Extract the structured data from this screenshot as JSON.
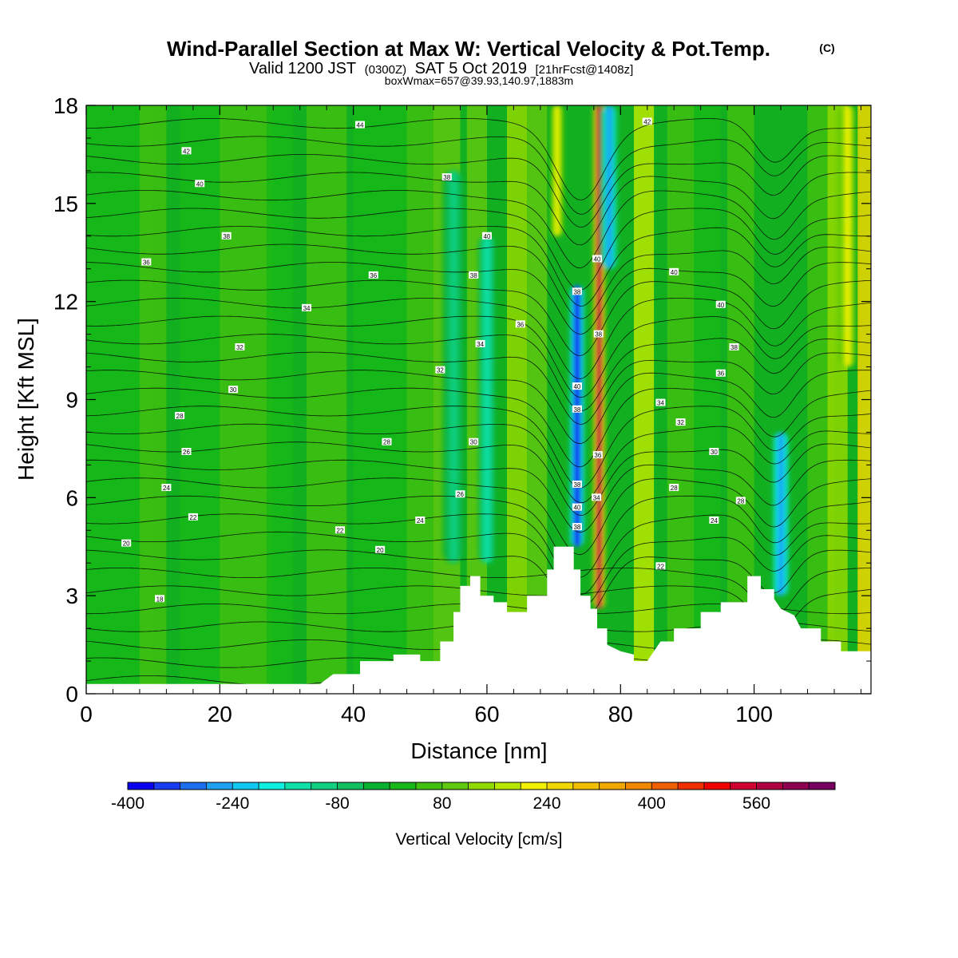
{
  "header": {
    "title": "Wind-Parallel Section at Max W: Vertical Velocity & Pot.Temp.",
    "title_suffix": "(C)",
    "subtitle_a": "Valid 1200 JST",
    "subtitle_b": "(0300Z)",
    "subtitle_c": "SAT 5 Oct 2019",
    "subtitle_d": "[21hrFcst@1408z]",
    "subtitle2": "boxWmax=657@39.93,140.97,1883m"
  },
  "chart_data": {
    "type": "heatmap",
    "title": "Wind-Parallel Section at Max W: Vertical Velocity & Pot.Temp.",
    "xlabel": "Distance [nm]",
    "ylabel": "Height [Kft MSL]",
    "xlim": [
      0,
      117.5
    ],
    "ylim": [
      0,
      18
    ],
    "x_ticks": [
      0,
      20,
      40,
      60,
      80,
      100
    ],
    "y_ticks": [
      0,
      3,
      6,
      9,
      12,
      15,
      18
    ],
    "grid": false,
    "colorbar": {
      "label": "Vertical Velocity [cm/s]",
      "placement": "bottom",
      "min": -400,
      "max": 680,
      "step": 40,
      "tick_labels": [
        -400,
        -240,
        -80,
        80,
        240,
        400,
        560
      ],
      "colors": [
        "#0b00f0",
        "#1a3cf0",
        "#1e6ef0",
        "#1ea0f0",
        "#10c8f0",
        "#10f0e0",
        "#10e0a8",
        "#10d080",
        "#10c060",
        "#08b030",
        "#18b818",
        "#40c010",
        "#60c810",
        "#90d800",
        "#b8e800",
        "#f0f000",
        "#f0d800",
        "#f0c000",
        "#f0a800",
        "#f08800",
        "#f06000",
        "#f03000",
        "#f00000",
        "#d00030",
        "#b00040",
        "#900050",
        "#780060"
      ]
    },
    "terrain": [
      [
        0,
        0.3
      ],
      [
        5,
        0.3
      ],
      [
        10,
        0.3
      ],
      [
        15,
        0.3
      ],
      [
        20,
        0.3
      ],
      [
        25,
        0.3
      ],
      [
        30,
        0.3
      ],
      [
        35,
        0.3
      ],
      [
        37,
        0.6
      ],
      [
        41,
        0.6
      ],
      [
        41,
        1.0
      ],
      [
        46,
        1.0
      ],
      [
        46,
        1.2
      ],
      [
        50,
        1.2
      ],
      [
        50,
        1.0
      ],
      [
        53,
        1.0
      ],
      [
        53,
        1.6
      ],
      [
        55,
        1.6
      ],
      [
        55,
        2.5
      ],
      [
        56,
        2.5
      ],
      [
        56,
        3.3
      ],
      [
        57.5,
        3.3
      ],
      [
        57.5,
        3.6
      ],
      [
        59,
        3.6
      ],
      [
        59,
        3.0
      ],
      [
        61,
        3.0
      ],
      [
        61,
        2.8
      ],
      [
        63,
        2.8
      ],
      [
        63,
        2.5
      ],
      [
        66,
        2.5
      ],
      [
        66,
        3.0
      ],
      [
        69,
        3.0
      ],
      [
        69,
        3.8
      ],
      [
        70,
        3.8
      ],
      [
        70,
        4.5
      ],
      [
        73,
        4.5
      ],
      [
        73,
        3.8
      ],
      [
        74,
        3.8
      ],
      [
        74,
        3.0
      ],
      [
        75.5,
        3.0
      ],
      [
        75.5,
        2.6
      ],
      [
        76.5,
        2.6
      ],
      [
        76.5,
        2.0
      ],
      [
        78,
        2.0
      ],
      [
        78,
        1.5
      ],
      [
        80,
        1.3
      ],
      [
        82,
        1.2
      ],
      [
        82,
        1.0
      ],
      [
        84,
        1.0
      ],
      [
        85,
        1.3
      ],
      [
        86,
        1.6
      ],
      [
        88,
        1.6
      ],
      [
        88,
        2.0
      ],
      [
        92,
        2.0
      ],
      [
        92,
        2.5
      ],
      [
        95,
        2.5
      ],
      [
        95,
        2.8
      ],
      [
        99,
        2.8
      ],
      [
        99,
        3.6
      ],
      [
        101,
        3.6
      ],
      [
        101,
        3.2
      ],
      [
        103,
        3.2
      ],
      [
        103,
        2.9
      ],
      [
        104,
        2.6
      ],
      [
        106,
        2.4
      ],
      [
        107,
        2.0
      ],
      [
        110,
        2.0
      ],
      [
        110,
        1.6
      ],
      [
        113,
        1.6
      ],
      [
        113,
        1.3
      ],
      [
        116,
        1.3
      ],
      [
        116,
        1.3
      ],
      [
        117.5,
        1.3
      ]
    ],
    "w_features": [
      {
        "x": 76.8,
        "y0": 2.6,
        "y1": 18,
        "width": 1.1,
        "peak": 600
      },
      {
        "x": 73.5,
        "y0": 4.5,
        "y1": 12.5,
        "width": 1.5,
        "peak": -400
      },
      {
        "x": 78.3,
        "y0": 13,
        "y1": 18,
        "width": 1.6,
        "peak": -260
      },
      {
        "x": 70.5,
        "y0": 14,
        "y1": 18,
        "width": 1.2,
        "peak": 200
      },
      {
        "x": 104,
        "y0": 3,
        "y1": 8,
        "width": 1.6,
        "peak": -280
      },
      {
        "x": 114,
        "y0": 10,
        "y1": 18,
        "width": 1.5,
        "peak": 200
      },
      {
        "x": 60,
        "y0": 4,
        "y1": 14,
        "width": 1.6,
        "peak": -140
      },
      {
        "x": 55,
        "y0": 4,
        "y1": 16,
        "width": 2,
        "peak": -100
      }
    ],
    "theta_contour_labels": [
      {
        "x": 41,
        "y": 17.4,
        "text": "44"
      },
      {
        "x": 15,
        "y": 16.6,
        "text": "42"
      },
      {
        "x": 17,
        "y": 15.6,
        "text": "40"
      },
      {
        "x": 54,
        "y": 15.8,
        "text": "38"
      },
      {
        "x": 21,
        "y": 14.0,
        "text": "38"
      },
      {
        "x": 60,
        "y": 14.0,
        "text": "40"
      },
      {
        "x": 9,
        "y": 13.2,
        "text": "36"
      },
      {
        "x": 43,
        "y": 12.8,
        "text": "36"
      },
      {
        "x": 58,
        "y": 12.8,
        "text": "38"
      },
      {
        "x": 33,
        "y": 11.8,
        "text": "34"
      },
      {
        "x": 65,
        "y": 11.3,
        "text": "36"
      },
      {
        "x": 23,
        "y": 10.6,
        "text": "32"
      },
      {
        "x": 59,
        "y": 10.7,
        "text": "34"
      },
      {
        "x": 53,
        "y": 9.9,
        "text": "32"
      },
      {
        "x": 22,
        "y": 9.3,
        "text": "30"
      },
      {
        "x": 14,
        "y": 8.5,
        "text": "28"
      },
      {
        "x": 45,
        "y": 7.7,
        "text": "28"
      },
      {
        "x": 58,
        "y": 7.7,
        "text": "30"
      },
      {
        "x": 15,
        "y": 7.4,
        "text": "26"
      },
      {
        "x": 12,
        "y": 6.3,
        "text": "24"
      },
      {
        "x": 56,
        "y": 6.1,
        "text": "26"
      },
      {
        "x": 16,
        "y": 5.4,
        "text": "22"
      },
      {
        "x": 50,
        "y": 5.3,
        "text": "24"
      },
      {
        "x": 38,
        "y": 5.0,
        "text": "22"
      },
      {
        "x": 6,
        "y": 4.6,
        "text": "20"
      },
      {
        "x": 44,
        "y": 4.4,
        "text": "20"
      },
      {
        "x": 11,
        "y": 2.9,
        "text": "18"
      },
      {
        "x": 84,
        "y": 17.5,
        "text": "42"
      },
      {
        "x": 88,
        "y": 12.9,
        "text": "40"
      },
      {
        "x": 95,
        "y": 11.9,
        "text": "40"
      },
      {
        "x": 97,
        "y": 10.6,
        "text": "38"
      },
      {
        "x": 95,
        "y": 9.8,
        "text": "36"
      },
      {
        "x": 86,
        "y": 8.9,
        "text": "34"
      },
      {
        "x": 89,
        "y": 8.3,
        "text": "32"
      },
      {
        "x": 94,
        "y": 7.4,
        "text": "30"
      },
      {
        "x": 98,
        "y": 5.9,
        "text": "28"
      },
      {
        "x": 94,
        "y": 5.3,
        "text": "24"
      },
      {
        "x": 88,
        "y": 6.3,
        "text": "28"
      },
      {
        "x": 86,
        "y": 3.9,
        "text": "22"
      },
      {
        "x": 76.5,
        "y": 13.3,
        "text": "40"
      },
      {
        "x": 76.7,
        "y": 11.0,
        "text": "38"
      },
      {
        "x": 76.6,
        "y": 7.3,
        "text": "36"
      },
      {
        "x": 76.4,
        "y": 6.0,
        "text": "34"
      },
      {
        "x": 73.5,
        "y": 12.3,
        "text": "38"
      },
      {
        "x": 73.5,
        "y": 9.4,
        "text": "40"
      },
      {
        "x": 73.5,
        "y": 8.7,
        "text": "38"
      },
      {
        "x": 73.5,
        "y": 6.4,
        "text": "38"
      },
      {
        "x": 73.5,
        "y": 5.7,
        "text": "40"
      },
      {
        "x": 73.5,
        "y": 5.1,
        "text": "38"
      }
    ]
  }
}
